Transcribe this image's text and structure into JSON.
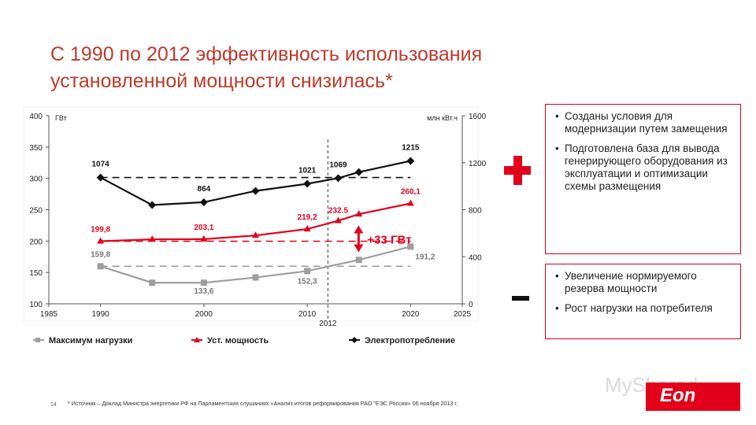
{
  "title_lines": [
    "С 1990 по 2012 эффективность использования",
    "установленной мощности снизилась*"
  ],
  "colors": {
    "title": "#c0392b",
    "accent_red": "#e3001b",
    "max_load": "#9e9e9e",
    "capacity": "#e3001b",
    "consumption": "#111111",
    "box_border": "#d0021b"
  },
  "chart_data": {
    "type": "line",
    "x_ticks": [
      "1985",
      "1990",
      "2000",
      "2010",
      "2020",
      "2025"
    ],
    "xlim": [
      1985,
      2025
    ],
    "y_left": {
      "unit": "ГВт",
      "ticks": [
        "100",
        "150",
        "200",
        "250",
        "300",
        "350",
        "400"
      ],
      "lim": [
        100,
        400
      ]
    },
    "y_right": {
      "unit": "млн кВт.ч",
      "ticks": [
        "0",
        "400",
        "800",
        "1200",
        "1600"
      ],
      "lim": [
        0,
        1600
      ]
    },
    "grid": false,
    "legend_position": "bottom",
    "series": [
      {
        "name": "Максимум нагрузки",
        "axis": "left",
        "color": "#9e9e9e",
        "marker": "square",
        "x": [
          1990,
          1995,
          2000,
          2005,
          2010,
          2015,
          2020
        ],
        "y": [
          159.8,
          133.6,
          133.6,
          142,
          152.3,
          170,
          191.2
        ],
        "labels": [
          {
            "x": 1990,
            "text": "159,8"
          },
          {
            "x": 2000,
            "text": "133,6"
          },
          {
            "x": 2010,
            "text": "152,3"
          },
          {
            "x": 2020,
            "text": "191,2"
          }
        ]
      },
      {
        "name": "Уст. мощность",
        "axis": "left",
        "color": "#e3001b",
        "marker": "triangle",
        "x": [
          1990,
          1995,
          2000,
          2005,
          2010,
          2013,
          2015,
          2020
        ],
        "y": [
          199.8,
          202.8,
          203.1,
          209,
          219.2,
          232.5,
          243,
          260.1
        ],
        "labels": [
          {
            "x": 1990,
            "text": "199,8"
          },
          {
            "x": 2000,
            "text": "203,1"
          },
          {
            "x": 2010,
            "text": "219,2"
          },
          {
            "x": 2013,
            "text": "232.5"
          },
          {
            "x": 2020,
            "text": "260,1"
          }
        ]
      },
      {
        "name": "Электропотребление",
        "axis": "right",
        "color": "#111111",
        "marker": "diamond",
        "x": [
          1990,
          1995,
          2000,
          2005,
          2010,
          2013,
          2015,
          2020
        ],
        "y": [
          1074,
          840,
          864,
          960,
          1021,
          1069,
          1120,
          1215
        ],
        "labels": [
          {
            "x": 1990,
            "text": "1074"
          },
          {
            "x": 2000,
            "text": "864"
          },
          {
            "x": 2010,
            "text": "1021"
          },
          {
            "x": 2013,
            "text": "1069"
          },
          {
            "x": 2020,
            "text": "1215"
          }
        ]
      }
    ],
    "reference_lines": [
      {
        "axis": "right",
        "value": 1074,
        "color": "#111111"
      },
      {
        "axis": "left",
        "value": 199.8,
        "color": "#e3001b"
      },
      {
        "axis": "left",
        "value": 159.8,
        "color": "#9e9e9e"
      }
    ],
    "vertical_marker": {
      "x": 2012,
      "label": "2012"
    },
    "annotation": {
      "text": "+33 ГВт",
      "x": 2012,
      "from": 199.8,
      "to": 232.5
    }
  },
  "plus_box": {
    "items": [
      "Созданы условия для модернизации путем замещения",
      "Подготовлена база для вывода генерирующего оборудования из эксплуатации и оптимизации схемы размещения"
    ]
  },
  "minus_box": {
    "items": [
      "Увеличение нормируемого резерва мощности",
      "Рост нагрузки на потребителя"
    ]
  },
  "footnote_number": "14",
  "footnote": "* Источник – Доклад Министра энергетики РФ на Парламентских слушаниях «Анализ итогов реформирования РАО \"ЕЭС России» 06 ноября 2013 г.",
  "watermark": "MyShared",
  "brand_logo_text": "Eon"
}
